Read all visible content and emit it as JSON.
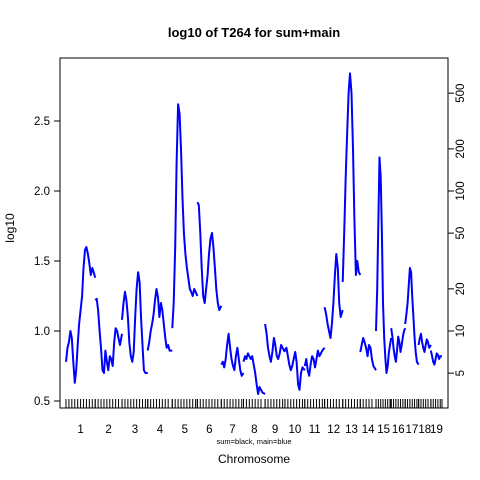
{
  "chart_data": {
    "type": "line",
    "title": "log10 of T264 for sum+main",
    "xlabel": "Chromosome",
    "ylabel": "log10",
    "legend_note": "sum=black, main=blue",
    "ylim": [
      0.45,
      2.95
    ],
    "left_ticks": [
      0.5,
      1.0,
      1.5,
      2.0,
      2.5
    ],
    "left_tick_labels": [
      "0.5",
      "1.0",
      "1.5",
      "2.0",
      "2.5"
    ],
    "right_ticks": [
      5,
      10,
      20,
      50,
      100,
      200,
      500
    ],
    "right_tick_labels": [
      "5",
      "10",
      "20",
      "50",
      "100",
      "200",
      "500"
    ],
    "grid": false,
    "series_color": "#0000ff",
    "chromosomes": [
      {
        "label": "1",
        "start": 0.0,
        "end": 1.0
      },
      {
        "label": "2",
        "start": 1.0,
        "end": 1.92
      },
      {
        "label": "3",
        "start": 1.92,
        "end": 2.8
      },
      {
        "label": "4",
        "start": 2.8,
        "end": 3.64
      },
      {
        "label": "5",
        "start": 3.64,
        "end": 4.5
      },
      {
        "label": "6",
        "start": 4.5,
        "end": 5.32
      },
      {
        "label": "7",
        "start": 5.32,
        "end": 6.08
      },
      {
        "label": "8",
        "start": 6.08,
        "end": 6.82
      },
      {
        "label": "9",
        "start": 6.82,
        "end": 7.5
      },
      {
        "label": "10",
        "start": 7.5,
        "end": 8.18
      },
      {
        "label": "11",
        "start": 8.18,
        "end": 8.86
      },
      {
        "label": "12",
        "start": 8.86,
        "end": 9.48
      },
      {
        "label": "13",
        "start": 9.48,
        "end": 10.08
      },
      {
        "label": "14",
        "start": 10.08,
        "end": 10.62
      },
      {
        "label": "15",
        "start": 10.62,
        "end": 11.14
      },
      {
        "label": "16",
        "start": 11.14,
        "end": 11.62
      },
      {
        "label": "17",
        "start": 11.62,
        "end": 12.08
      },
      {
        "label": "18",
        "start": 12.08,
        "end": 12.5
      },
      {
        "label": "19",
        "start": 12.5,
        "end": 12.88
      }
    ],
    "series": [
      {
        "color": "#0000ff",
        "segments": [
          {
            "chromosome": "1",
            "x": [
              0.0,
              0.05,
              0.1,
              0.15,
              0.2,
              0.25,
              0.3,
              0.35,
              0.4,
              0.45,
              0.5,
              0.55,
              0.6,
              0.65,
              0.7,
              0.75,
              0.8,
              0.85,
              0.9,
              0.95,
              1.0
            ],
            "y": [
              0.78,
              0.88,
              0.92,
              1.0,
              0.95,
              0.78,
              0.63,
              0.72,
              0.9,
              1.05,
              1.15,
              1.25,
              1.45,
              1.58,
              1.6,
              1.55,
              1.48,
              1.4,
              1.45,
              1.42,
              1.38
            ]
          },
          {
            "chromosome": "2",
            "x": [
              1.0,
              1.05,
              1.1,
              1.15,
              1.2,
              1.25,
              1.3,
              1.35,
              1.4,
              1.45,
              1.5,
              1.55,
              1.6,
              1.65,
              1.7,
              1.75,
              1.8,
              1.85,
              1.92
            ],
            "y": [
              1.22,
              1.23,
              1.15,
              1.0,
              0.88,
              0.72,
              0.7,
              0.86,
              0.78,
              0.72,
              0.82,
              0.8,
              0.75,
              0.92,
              1.02,
              1.0,
              0.95,
              0.9,
              0.98
            ]
          },
          {
            "chromosome": "3",
            "x": [
              1.92,
              1.97,
              2.02,
              2.07,
              2.12,
              2.17,
              2.22,
              2.27,
              2.32,
              2.37,
              2.42,
              2.47,
              2.52,
              2.57,
              2.62,
              2.67,
              2.72,
              2.8
            ],
            "y": [
              1.08,
              1.2,
              1.28,
              1.22,
              1.1,
              0.92,
              0.82,
              0.78,
              0.85,
              1.1,
              1.3,
              1.42,
              1.35,
              1.1,
              0.9,
              0.72,
              0.7,
              0.7
            ]
          },
          {
            "chromosome": "4",
            "x": [
              2.8,
              2.85,
              2.9,
              2.95,
              3.0,
              3.05,
              3.1,
              3.15,
              3.2,
              3.25,
              3.3,
              3.35,
              3.4,
              3.45,
              3.5,
              3.55,
              3.64
            ],
            "y": [
              0.86,
              0.92,
              1.0,
              1.05,
              1.12,
              1.22,
              1.3,
              1.24,
              1.1,
              1.2,
              1.15,
              1.05,
              0.95,
              0.88,
              0.9,
              0.86,
              0.86
            ]
          },
          {
            "chromosome": "5",
            "x": [
              3.64,
              3.69,
              3.74,
              3.79,
              3.84,
              3.89,
              3.94,
              3.99,
              4.04,
              4.09,
              4.14,
              4.19,
              4.24,
              4.29,
              4.34,
              4.39,
              4.44,
              4.5
            ],
            "y": [
              1.02,
              1.2,
              1.6,
              2.2,
              2.62,
              2.55,
              2.3,
              1.95,
              1.7,
              1.55,
              1.45,
              1.38,
              1.3,
              1.28,
              1.25,
              1.3,
              1.28,
              1.25
            ]
          },
          {
            "chromosome": "6",
            "x": [
              4.5,
              4.55,
              4.6,
              4.65,
              4.7,
              4.75,
              4.8,
              4.85,
              4.9,
              4.95,
              5.0,
              5.05,
              5.1,
              5.15,
              5.2,
              5.25,
              5.32
            ],
            "y": [
              1.92,
              1.9,
              1.7,
              1.45,
              1.25,
              1.2,
              1.3,
              1.4,
              1.55,
              1.66,
              1.7,
              1.6,
              1.45,
              1.3,
              1.2,
              1.15,
              1.18
            ]
          },
          {
            "chromosome": "7",
            "x": [
              5.32,
              5.37,
              5.42,
              5.47,
              5.52,
              5.57,
              5.62,
              5.67,
              5.72,
              5.77,
              5.82,
              5.87,
              5.92,
              5.97,
              6.02,
              6.08
            ],
            "y": [
              0.76,
              0.78,
              0.74,
              0.8,
              0.9,
              0.98,
              0.88,
              0.8,
              0.75,
              0.72,
              0.82,
              0.88,
              0.8,
              0.72,
              0.68,
              0.7
            ]
          },
          {
            "chromosome": "8",
            "x": [
              6.08,
              6.13,
              6.18,
              6.23,
              6.28,
              6.33,
              6.38,
              6.43,
              6.48,
              6.53,
              6.58,
              6.63,
              6.68,
              6.73,
              6.82
            ],
            "y": [
              0.78,
              0.82,
              0.8,
              0.84,
              0.82,
              0.8,
              0.82,
              0.76,
              0.7,
              0.62,
              0.55,
              0.6,
              0.58,
              0.56,
              0.55
            ]
          },
          {
            "chromosome": "9",
            "x": [
              6.82,
              6.87,
              6.92,
              6.97,
              7.02,
              7.07,
              7.12,
              7.17,
              7.22,
              7.27,
              7.32,
              7.37,
              7.42,
              7.5
            ],
            "y": [
              1.05,
              0.98,
              0.88,
              0.82,
              0.78,
              0.85,
              0.95,
              0.9,
              0.82,
              0.8,
              0.84,
              0.9,
              0.88,
              0.85
            ]
          },
          {
            "chromosome": "10",
            "x": [
              7.5,
              7.55,
              7.6,
              7.65,
              7.7,
              7.75,
              7.8,
              7.85,
              7.9,
              7.95,
              8.0,
              8.05,
              8.1,
              8.18
            ],
            "y": [
              0.86,
              0.88,
              0.82,
              0.76,
              0.72,
              0.75,
              0.8,
              0.85,
              0.78,
              0.62,
              0.58,
              0.7,
              0.74,
              0.72
            ]
          },
          {
            "chromosome": "11",
            "x": [
              8.18,
              8.23,
              8.28,
              8.33,
              8.38,
              8.43,
              8.48,
              8.53,
              8.58,
              8.63,
              8.68,
              8.73,
              8.78,
              8.86
            ],
            "y": [
              0.75,
              0.8,
              0.72,
              0.68,
              0.76,
              0.82,
              0.8,
              0.74,
              0.8,
              0.86,
              0.82,
              0.84,
              0.86,
              0.88
            ]
          },
          {
            "chromosome": "12",
            "x": [
              8.86,
              8.91,
              8.96,
              9.01,
              9.06,
              9.11,
              9.16,
              9.21,
              9.26,
              9.31,
              9.36,
              9.41,
              9.48
            ],
            "y": [
              1.17,
              1.12,
              1.05,
              1.0,
              0.95,
              1.05,
              1.2,
              1.4,
              1.55,
              1.45,
              1.2,
              1.1,
              1.15
            ]
          },
          {
            "chromosome": "13",
            "x": [
              9.48,
              9.53,
              9.58,
              9.63,
              9.68,
              9.73,
              9.78,
              9.83,
              9.88,
              9.93,
              9.98,
              10.03,
              10.08
            ],
            "y": [
              1.35,
              1.7,
              2.1,
              2.4,
              2.7,
              2.84,
              2.7,
              2.3,
              1.8,
              1.4,
              1.5,
              1.42,
              1.4
            ]
          },
          {
            "chromosome": "14",
            "x": [
              10.08,
              10.13,
              10.18,
              10.23,
              10.28,
              10.33,
              10.38,
              10.43,
              10.48,
              10.53,
              10.62
            ],
            "y": [
              0.85,
              0.9,
              0.95,
              0.92,
              0.88,
              0.82,
              0.9,
              0.88,
              0.8,
              0.75,
              0.72
            ]
          },
          {
            "chromosome": "15",
            "x": [
              10.62,
              10.66,
              10.7,
              10.74,
              10.78,
              10.82,
              10.86,
              10.9,
              10.94,
              10.98,
              11.02,
              11.06,
              11.1,
              11.14
            ],
            "y": [
              1.0,
              1.3,
              1.8,
              2.24,
              2.1,
              1.7,
              1.2,
              0.95,
              0.8,
              0.7,
              0.75,
              0.85,
              0.9,
              0.95
            ]
          },
          {
            "chromosome": "16",
            "x": [
              11.14,
              11.18,
              11.22,
              11.26,
              11.3,
              11.34,
              11.38,
              11.42,
              11.46,
              11.5,
              11.54,
              11.58,
              11.62
            ],
            "y": [
              1.02,
              0.96,
              0.88,
              0.82,
              0.78,
              0.86,
              0.96,
              0.92,
              0.85,
              0.9,
              0.96,
              1.0,
              1.02
            ]
          },
          {
            "chromosome": "17",
            "x": [
              11.62,
              11.66,
              11.7,
              11.74,
              11.78,
              11.82,
              11.86,
              11.9,
              11.94,
              11.98,
              12.02,
              12.08
            ],
            "y": [
              1.05,
              1.12,
              1.2,
              1.32,
              1.45,
              1.42,
              1.25,
              1.1,
              0.95,
              0.85,
              0.78,
              0.76
            ]
          },
          {
            "chromosome": "18",
            "x": [
              12.08,
              12.12,
              12.16,
              12.2,
              12.24,
              12.28,
              12.32,
              12.36,
              12.4,
              12.44,
              12.5
            ],
            "y": [
              0.9,
              0.95,
              0.98,
              0.92,
              0.88,
              0.85,
              0.9,
              0.94,
              0.92,
              0.88,
              0.9
            ]
          },
          {
            "chromosome": "19",
            "x": [
              12.5,
              12.54,
              12.58,
              12.62,
              12.66,
              12.7,
              12.74,
              12.78,
              12.82,
              12.88
            ],
            "y": [
              0.86,
              0.82,
              0.78,
              0.76,
              0.8,
              0.84,
              0.83,
              0.8,
              0.82,
              0.82
            ]
          }
        ]
      }
    ]
  }
}
